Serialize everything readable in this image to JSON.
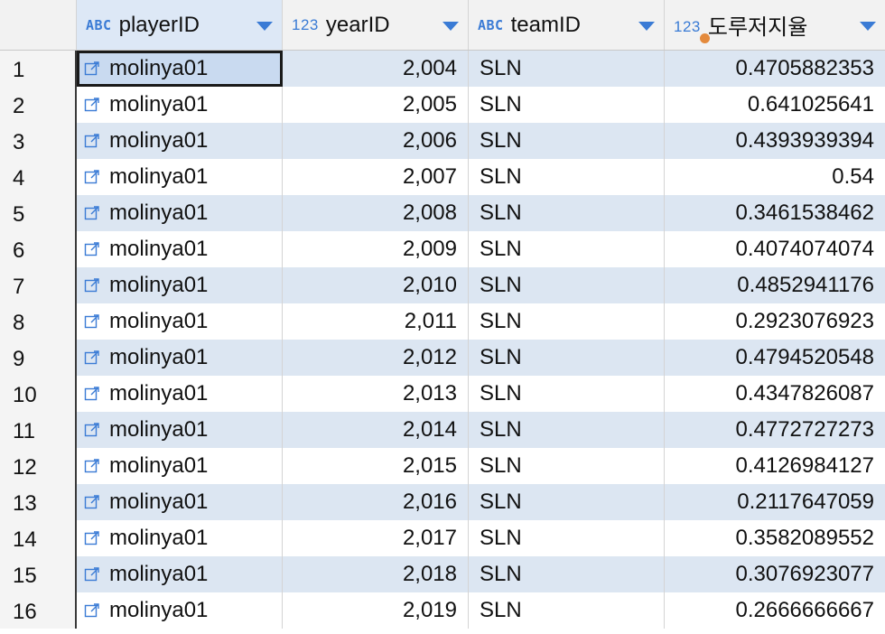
{
  "columns": [
    {
      "type_badge": "ABC",
      "label": "playerID"
    },
    {
      "type_badge": "123",
      "label": "yearID"
    },
    {
      "type_badge": "ABC",
      "label": "teamID"
    },
    {
      "type_badge": "123",
      "label": "도루저지율"
    }
  ],
  "colors": {
    "accent": "#3a7bd5",
    "row_stripe": "#dce6f2",
    "orange_dot": "#e48a3c"
  },
  "rows": [
    {
      "num": "1",
      "playerID": "molinya01",
      "yearID": "2,004",
      "teamID": "SLN",
      "rate": "0.4705882353"
    },
    {
      "num": "2",
      "playerID": "molinya01",
      "yearID": "2,005",
      "teamID": "SLN",
      "rate": "0.641025641"
    },
    {
      "num": "3",
      "playerID": "molinya01",
      "yearID": "2,006",
      "teamID": "SLN",
      "rate": "0.4393939394"
    },
    {
      "num": "4",
      "playerID": "molinya01",
      "yearID": "2,007",
      "teamID": "SLN",
      "rate": "0.54"
    },
    {
      "num": "5",
      "playerID": "molinya01",
      "yearID": "2,008",
      "teamID": "SLN",
      "rate": "0.3461538462"
    },
    {
      "num": "6",
      "playerID": "molinya01",
      "yearID": "2,009",
      "teamID": "SLN",
      "rate": "0.4074074074"
    },
    {
      "num": "7",
      "playerID": "molinya01",
      "yearID": "2,010",
      "teamID": "SLN",
      "rate": "0.4852941176"
    },
    {
      "num": "8",
      "playerID": "molinya01",
      "yearID": "2,011",
      "teamID": "SLN",
      "rate": "0.2923076923"
    },
    {
      "num": "9",
      "playerID": "molinya01",
      "yearID": "2,012",
      "teamID": "SLN",
      "rate": "0.4794520548"
    },
    {
      "num": "10",
      "playerID": "molinya01",
      "yearID": "2,013",
      "teamID": "SLN",
      "rate": "0.4347826087"
    },
    {
      "num": "11",
      "playerID": "molinya01",
      "yearID": "2,014",
      "teamID": "SLN",
      "rate": "0.4772727273"
    },
    {
      "num": "12",
      "playerID": "molinya01",
      "yearID": "2,015",
      "teamID": "SLN",
      "rate": "0.4126984127"
    },
    {
      "num": "13",
      "playerID": "molinya01",
      "yearID": "2,016",
      "teamID": "SLN",
      "rate": "0.2117647059"
    },
    {
      "num": "14",
      "playerID": "molinya01",
      "yearID": "2,017",
      "teamID": "SLN",
      "rate": "0.3582089552"
    },
    {
      "num": "15",
      "playerID": "molinya01",
      "yearID": "2,018",
      "teamID": "SLN",
      "rate": "0.3076923077"
    },
    {
      "num": "16",
      "playerID": "molinya01",
      "yearID": "2,019",
      "teamID": "SLN",
      "rate": "0.2666666667"
    }
  ]
}
